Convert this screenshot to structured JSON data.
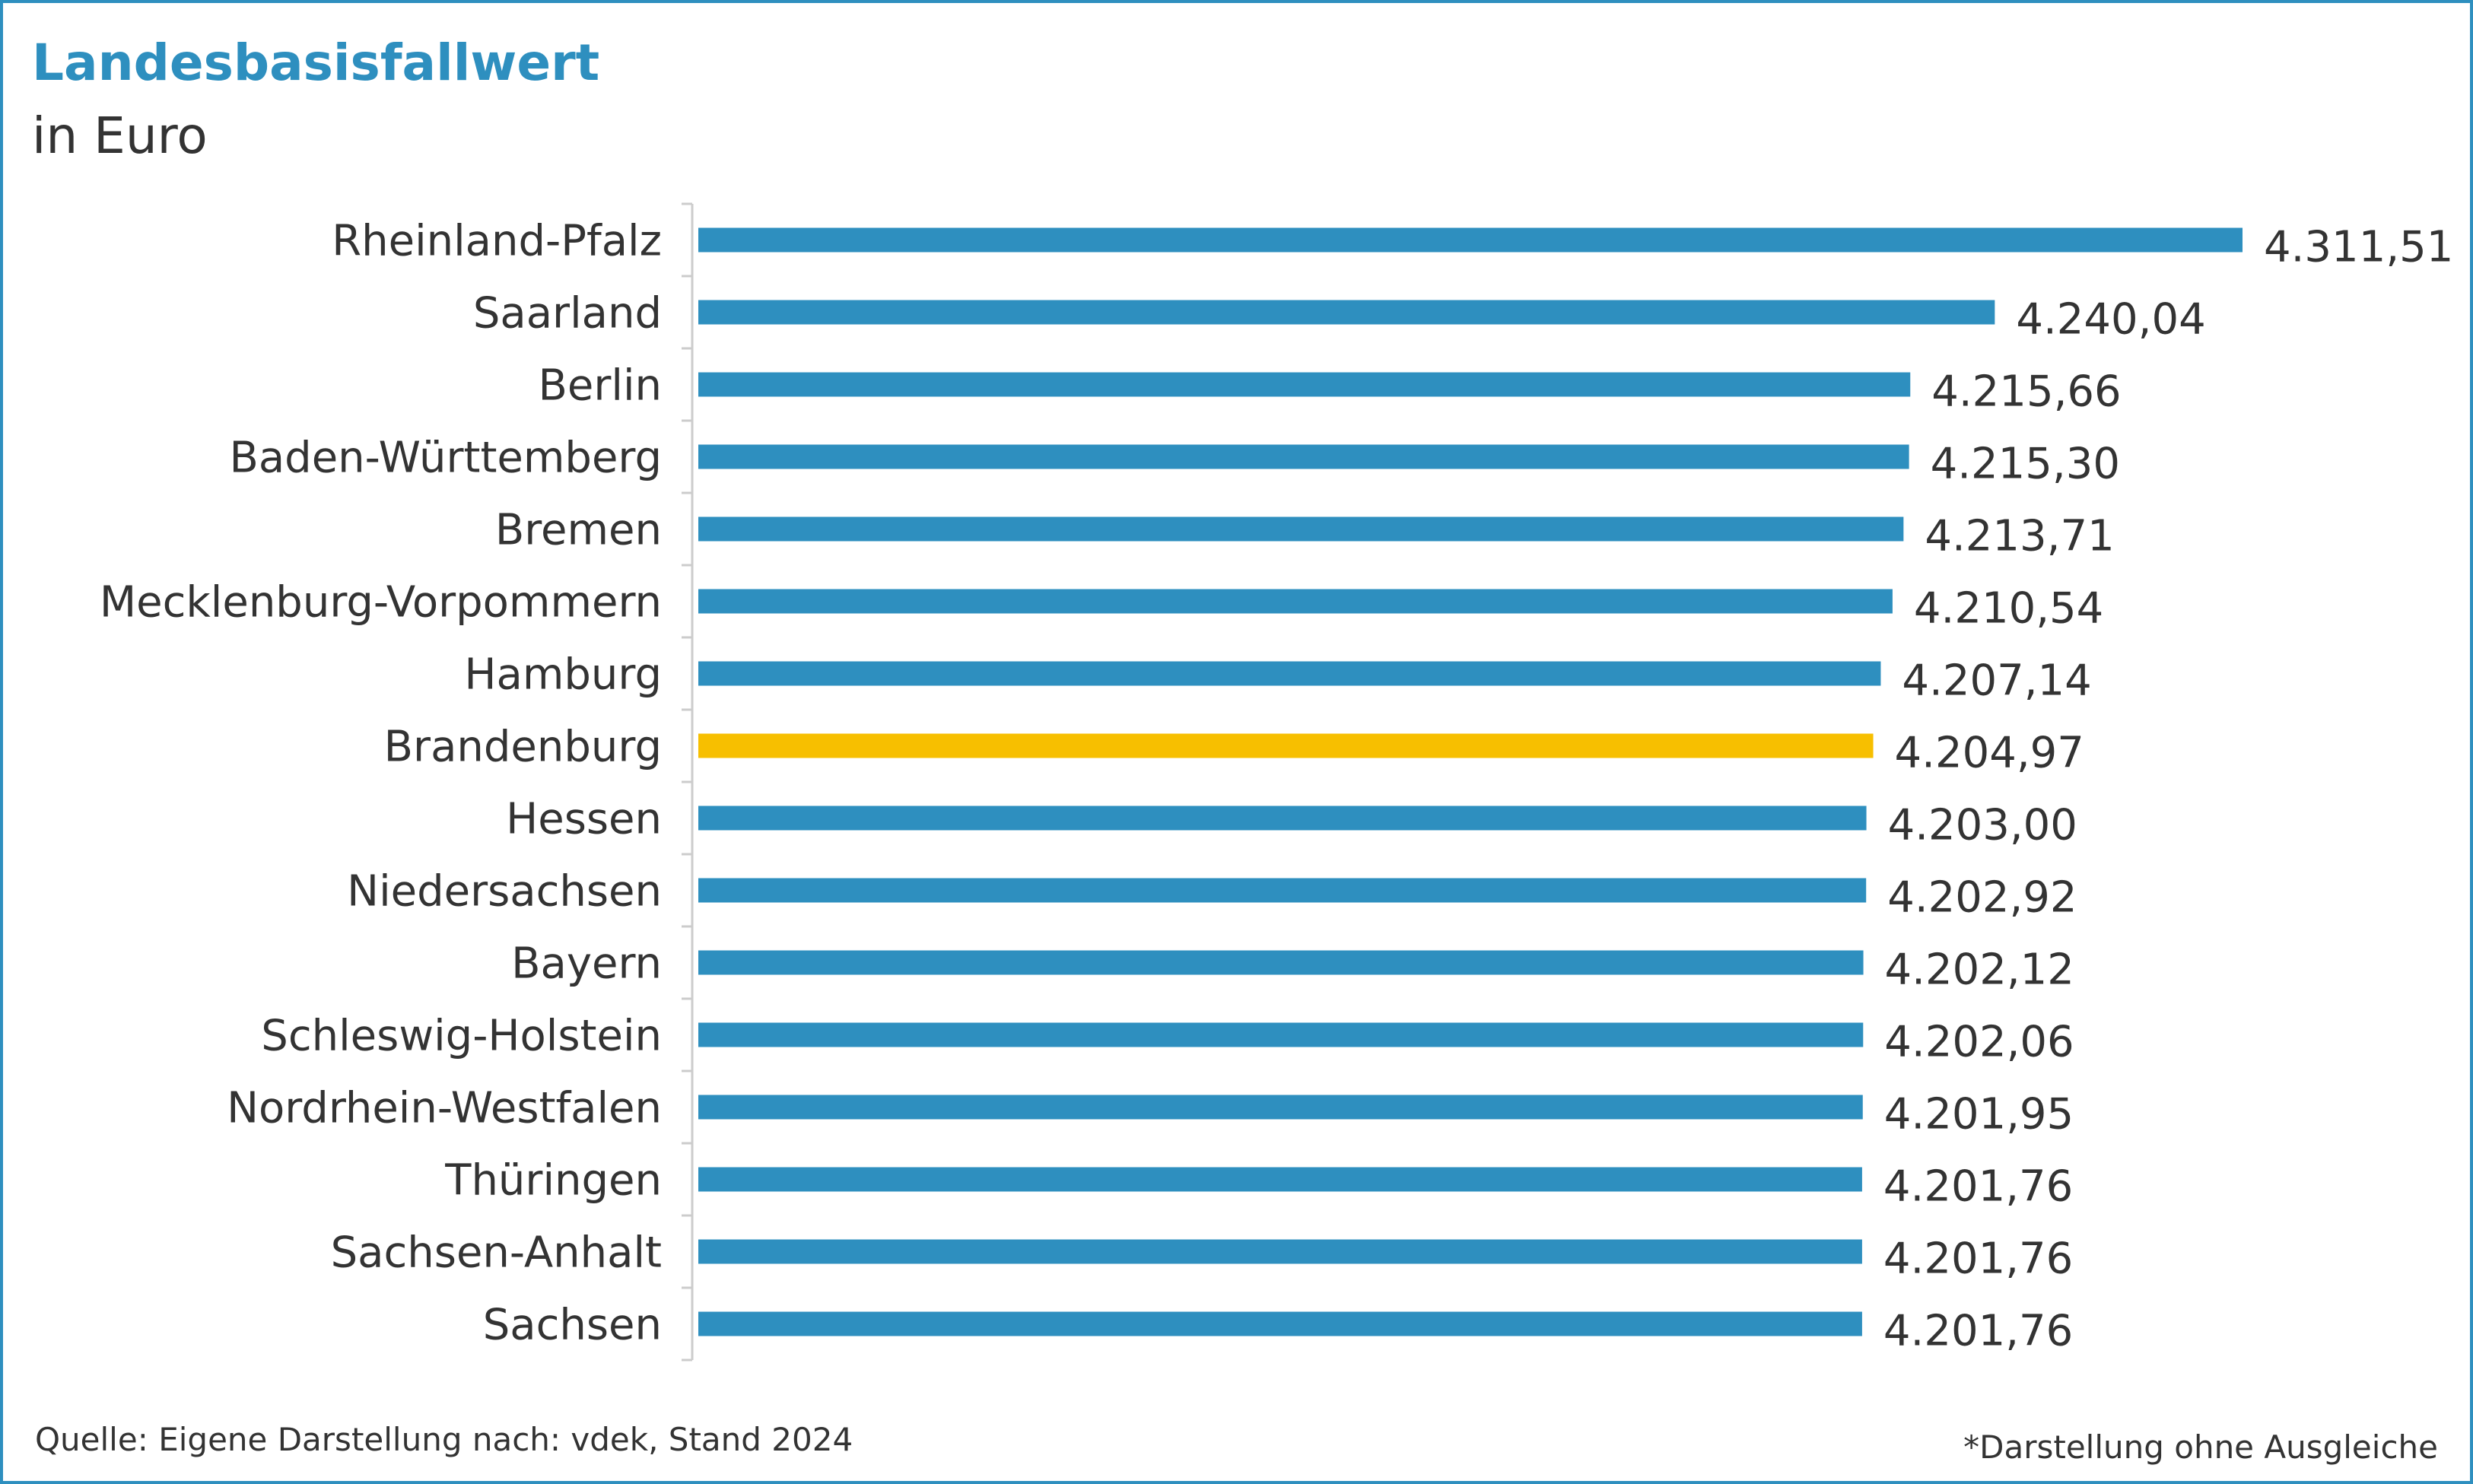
{
  "chart_data": {
    "type": "bar",
    "orientation": "horizontal",
    "title": "Landesbasisfallwert",
    "subtitle": "in Euro",
    "categories": [
      "Rheinland-Pfalz",
      "Saarland",
      "Berlin",
      "Baden-Württemberg",
      "Bremen",
      "Mecklenburg-Vorpommern",
      "Hamburg",
      "Brandenburg",
      "Hessen",
      "Niedersachsen",
      "Bayern",
      "Schleswig-Holstein",
      "Nordrhein-Westfalen",
      "Thüringen",
      "Sachsen-Anhalt",
      "Sachsen"
    ],
    "values": [
      4311.51,
      4240.04,
      4215.66,
      4215.3,
      4213.71,
      4210.54,
      4207.14,
      4204.97,
      4203.0,
      4202.92,
      4202.12,
      4202.06,
      4201.95,
      4201.76,
      4201.76,
      4201.76
    ],
    "value_labels": [
      "4.311,51",
      "4.240,04",
      "4.215,66",
      "4.215,30",
      "4.213,71",
      "4.210,54",
      "4.207,14",
      "4.204,97",
      "4.203,00",
      "4.202,92",
      "4.202,12",
      "4.202,06",
      "4.201,95",
      "4.201,76",
      "4.201,76",
      "4.201,76"
    ],
    "highlight_category": "Brandenburg",
    "xlim": [
      3866,
      4311.51
    ],
    "grid": false,
    "colors": {
      "bar": "#2e8fbf",
      "highlight": "#f7bf00",
      "text": "#333333",
      "axis": "#cccccc"
    }
  },
  "footer": {
    "source": "Quelle: Eigene Darstellung nach: vdek, Stand 2024",
    "note": "*Darstellung ohne Ausgleiche"
  }
}
